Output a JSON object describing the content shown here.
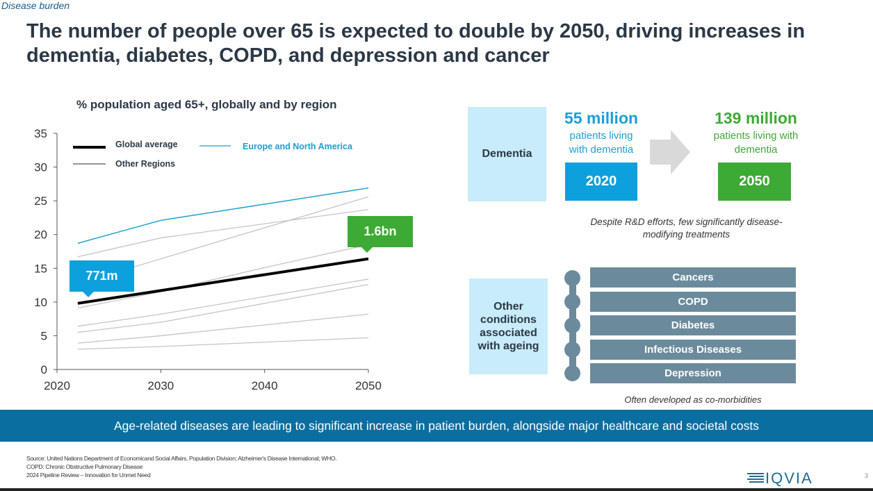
{
  "section": "Disease burden",
  "title": "The number of people over 65 is expected to double by 2050, driving increases in dementia, diabetes, COPD, and depression and cancer",
  "chart_data": {
    "type": "line",
    "title": "% population aged 65+, globally and by region",
    "xlabel": "",
    "ylabel": "",
    "xlim": [
      2020,
      2050
    ],
    "ylim": [
      0,
      35
    ],
    "x_ticks": [
      "2020",
      "2030",
      "2040",
      "2050"
    ],
    "y_ticks": [
      "0",
      "5",
      "10",
      "15",
      "20",
      "25",
      "30",
      "35"
    ],
    "legend": {
      "placement": "top-left",
      "entries": [
        "Global average",
        "Europe and North America",
        "Other Regions"
      ]
    },
    "series": [
      {
        "name": "Europe and North America",
        "color": "#1a9fd0",
        "width": 1.5,
        "x": [
          2022,
          2030,
          2050
        ],
        "values": [
          18.7,
          22.1,
          26.9
        ]
      },
      {
        "name": "Other Regions",
        "color": "#c4c4c4",
        "width": 1.3,
        "x": [
          2022,
          2030,
          2050
        ],
        "values": [
          16.7,
          19.5,
          23.7
        ]
      },
      {
        "name": "Other Regions",
        "color": "#c4c4c4",
        "width": 1.3,
        "x": [
          2022,
          2030,
          2050
        ],
        "values": [
          12.7,
          16.4,
          25.6
        ]
      },
      {
        "name": "Other Regions",
        "color": "#c4c4c4",
        "width": 1.3,
        "x": [
          2022,
          2030,
          2040,
          2050
        ],
        "values": [
          9.1,
          11.5,
          15.1,
          18.5
        ]
      },
      {
        "name": "Other Regions",
        "color": "#c4c4c4",
        "width": 1.3,
        "x": [
          2022,
          2030,
          2050
        ],
        "values": [
          6.4,
          8.2,
          13.4
        ]
      },
      {
        "name": "Other Regions",
        "color": "#c4c4c4",
        "width": 1.3,
        "x": [
          2022,
          2030,
          2050
        ],
        "values": [
          5.5,
          7.0,
          12.6
        ]
      },
      {
        "name": "Other Regions",
        "color": "#c4c4c4",
        "width": 1.3,
        "x": [
          2022,
          2030,
          2050
        ],
        "values": [
          3.9,
          5.0,
          8.2
        ]
      },
      {
        "name": "Other Regions",
        "color": "#c4c4c4",
        "width": 1.3,
        "x": [
          2022,
          2030,
          2050
        ],
        "values": [
          3.0,
          3.4,
          4.7
        ]
      },
      {
        "name": "Global average",
        "color": "#000000",
        "width": 4,
        "x": [
          2022,
          2030,
          2050
        ],
        "values": [
          9.8,
          11.7,
          16.4
        ]
      }
    ],
    "annotations": [
      {
        "text": "771m",
        "x": 2022,
        "color": "#0ea0dc"
      },
      {
        "text": "1.6bn",
        "x": 2050,
        "color": "#3daa35"
      }
    ]
  },
  "dementia": {
    "label": "Dementia",
    "from": {
      "value": "55 million",
      "desc": "patients living with dementia",
      "year": "2020",
      "color": "#1a9fd8"
    },
    "to": {
      "value": "139 million",
      "desc": "patients living with dementia",
      "year": "2050",
      "color": "#3daa35"
    },
    "note": "Despite R&D efforts, few significantly disease-modifying treatments"
  },
  "other": {
    "label": "Other conditions associated with ageing",
    "items": [
      "Cancers",
      "COPD",
      "Diabetes",
      "Infectious Diseases",
      "Depression"
    ],
    "note": "Often developed as co-morbidities"
  },
  "banner": "Age-related diseases are leading to significant increase in patient burden, alongside major healthcare and societal costs",
  "footer": {
    "lines": [
      "Source: United Nations Department of Economicand Social Affairs, Population Division; Alzheimer's Disease International; WHO.",
      "COPD: Chronic Obstructive Pulmonary Disease",
      "2024 Pipeline Review – Innovation for Unmet Need"
    ],
    "logo": "IQVIA",
    "page": "3"
  }
}
